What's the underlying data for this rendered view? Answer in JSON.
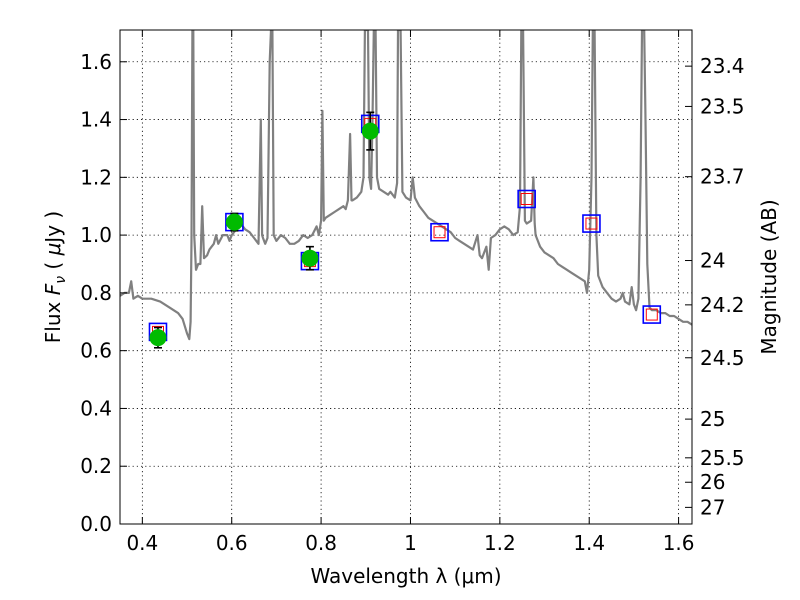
{
  "chart_data": {
    "type": "line",
    "xlabel": "Wavelength  λ (μm)",
    "ylabel": "Flux  F_ν  ( μJy )",
    "ylabel_parts": {
      "lead": "Flux  ",
      "sym": "F",
      "sub": "ν",
      "mid": "  ( ",
      "mu": "μ",
      "unit": "Jy )"
    },
    "y2label": "Magnitude (AB)",
    "xlim": [
      0.35,
      1.63
    ],
    "ylim": [
      0.0,
      1.71
    ],
    "grid": true,
    "x_ticks": [
      {
        "v": 0.4,
        "label": "0.4"
      },
      {
        "v": 0.6,
        "label": "0.6"
      },
      {
        "v": 0.8,
        "label": "0.8"
      },
      {
        "v": 1.0,
        "label": "1"
      },
      {
        "v": 1.2,
        "label": "1.2"
      },
      {
        "v": 1.4,
        "label": "1.4"
      },
      {
        "v": 1.6,
        "label": "1.6"
      }
    ],
    "y_ticks": [
      {
        "v": 0.0,
        "label": "0.0"
      },
      {
        "v": 0.2,
        "label": "0.2"
      },
      {
        "v": 0.4,
        "label": "0.4"
      },
      {
        "v": 0.6,
        "label": "0.6"
      },
      {
        "v": 0.8,
        "label": "0.8"
      },
      {
        "v": 1.0,
        "label": "1.0"
      },
      {
        "v": 1.2,
        "label": "1.2"
      },
      {
        "v": 1.4,
        "label": "1.4"
      },
      {
        "v": 1.6,
        "label": "1.6"
      }
    ],
    "magnitude_ticks": [
      {
        "mag": 23.4,
        "label": "23.4"
      },
      {
        "mag": 23.5,
        "label": "23.5"
      },
      {
        "mag": 23.7,
        "label": "23.7"
      },
      {
        "mag": 24,
        "label": "24"
      },
      {
        "mag": 24.2,
        "label": "24.2"
      },
      {
        "mag": 24.5,
        "label": "24.5"
      },
      {
        "mag": 25,
        "label": "25"
      },
      {
        "mag": 25.5,
        "label": "25.5"
      },
      {
        "mag": 26,
        "label": "26"
      },
      {
        "mag": 27,
        "label": "27"
      }
    ],
    "colors": {
      "spectrum": "#808080",
      "observed": "#00bb00",
      "errorbar": "#000000",
      "model_box": "#0000ff",
      "model_box_inner": "#ff0000",
      "grid": "#000000"
    },
    "series": [
      {
        "kind": "spectrum",
        "points": [
          [
            0.35,
            0.79
          ],
          [
            0.36,
            0.8
          ],
          [
            0.37,
            0.8
          ],
          [
            0.375,
            0.84
          ],
          [
            0.38,
            0.78
          ],
          [
            0.39,
            0.79
          ],
          [
            0.4,
            0.78
          ],
          [
            0.42,
            0.78
          ],
          [
            0.44,
            0.77
          ],
          [
            0.46,
            0.75
          ],
          [
            0.48,
            0.73
          ],
          [
            0.49,
            0.71
          ],
          [
            0.5,
            0.66
          ],
          [
            0.505,
            0.64
          ],
          [
            0.508,
            0.7
          ],
          [
            0.51,
            0.98
          ],
          [
            0.512,
            1.71
          ],
          [
            0.514,
            1.71
          ],
          [
            0.516,
            1.0
          ],
          [
            0.52,
            0.88
          ],
          [
            0.525,
            0.9
          ],
          [
            0.53,
            0.9
          ],
          [
            0.534,
            1.1
          ],
          [
            0.538,
            0.92
          ],
          [
            0.545,
            0.93
          ],
          [
            0.55,
            0.95
          ],
          [
            0.56,
            0.97
          ],
          [
            0.565,
            1.0
          ],
          [
            0.57,
            0.97
          ],
          [
            0.58,
            1.0
          ],
          [
            0.59,
            1.0
          ],
          [
            0.595,
            0.98
          ],
          [
            0.6,
            1.0
          ],
          [
            0.605,
            1.01
          ],
          [
            0.61,
            1.02
          ],
          [
            0.62,
            1.04
          ],
          [
            0.63,
            1.02
          ],
          [
            0.64,
            1.01
          ],
          [
            0.65,
            0.99
          ],
          [
            0.66,
            0.97
          ],
          [
            0.665,
            1.4
          ],
          [
            0.668,
            1.0
          ],
          [
            0.67,
            0.99
          ],
          [
            0.675,
            0.97
          ],
          [
            0.68,
            0.99
          ],
          [
            0.685,
            1.6
          ],
          [
            0.688,
            1.71
          ],
          [
            0.691,
            1.71
          ],
          [
            0.694,
            1.0
          ],
          [
            0.7,
            0.98
          ],
          [
            0.71,
            1.0
          ],
          [
            0.72,
            0.99
          ],
          [
            0.73,
            0.97
          ],
          [
            0.74,
            0.97
          ],
          [
            0.75,
            0.98
          ],
          [
            0.76,
            1.0
          ],
          [
            0.77,
            0.99
          ],
          [
            0.78,
            1.0
          ],
          [
            0.79,
            1.03
          ],
          [
            0.795,
            1.0
          ],
          [
            0.8,
            1.05
          ],
          [
            0.803,
            1.43
          ],
          [
            0.806,
            1.05
          ],
          [
            0.81,
            1.06
          ],
          [
            0.82,
            1.07
          ],
          [
            0.83,
            1.08
          ],
          [
            0.84,
            1.09
          ],
          [
            0.85,
            1.1
          ],
          [
            0.855,
            1.09
          ],
          [
            0.86,
            1.12
          ],
          [
            0.865,
            1.35
          ],
          [
            0.868,
            1.12
          ],
          [
            0.87,
            1.12
          ],
          [
            0.88,
            1.13
          ],
          [
            0.885,
            1.14
          ],
          [
            0.89,
            1.15
          ],
          [
            0.895,
            1.2
          ],
          [
            0.898,
            1.71
          ],
          [
            0.905,
            1.71
          ],
          [
            0.908,
            1.2
          ],
          [
            0.912,
            1.16
          ],
          [
            0.915,
            1.4
          ],
          [
            0.918,
            1.71
          ],
          [
            0.922,
            1.71
          ],
          [
            0.925,
            1.2
          ],
          [
            0.93,
            1.16
          ],
          [
            0.94,
            1.15
          ],
          [
            0.95,
            1.14
          ],
          [
            0.955,
            1.15
          ],
          [
            0.96,
            1.14
          ],
          [
            0.965,
            1.13
          ],
          [
            0.97,
            1.18
          ],
          [
            0.972,
            1.71
          ],
          [
            0.978,
            1.71
          ],
          [
            0.982,
            1.15
          ],
          [
            0.99,
            1.13
          ],
          [
            1.0,
            1.12
          ],
          [
            1.005,
            1.2
          ],
          [
            1.01,
            1.13
          ],
          [
            1.02,
            1.1
          ],
          [
            1.03,
            1.08
          ],
          [
            1.04,
            1.06
          ],
          [
            1.05,
            1.05
          ],
          [
            1.06,
            1.04
          ],
          [
            1.07,
            1.03
          ],
          [
            1.08,
            1.02
          ],
          [
            1.09,
            1.01
          ],
          [
            1.1,
            0.99
          ],
          [
            1.11,
            0.98
          ],
          [
            1.12,
            0.97
          ],
          [
            1.13,
            0.96
          ],
          [
            1.14,
            0.95
          ],
          [
            1.15,
            1.0
          ],
          [
            1.155,
            0.93
          ],
          [
            1.16,
            0.92
          ],
          [
            1.17,
            0.96
          ],
          [
            1.175,
            0.88
          ],
          [
            1.18,
            0.99
          ],
          [
            1.19,
            1.0
          ],
          [
            1.2,
            1.02
          ],
          [
            1.21,
            1.03
          ],
          [
            1.22,
            1.02
          ],
          [
            1.23,
            1.0
          ],
          [
            1.24,
            1.01
          ],
          [
            1.245,
            1.1
          ],
          [
            1.248,
            1.71
          ],
          [
            1.252,
            1.71
          ],
          [
            1.256,
            1.05
          ],
          [
            1.26,
            1.04
          ],
          [
            1.27,
            1.05
          ],
          [
            1.275,
            1.2
          ],
          [
            1.278,
            1.04
          ],
          [
            1.28,
            1.0
          ],
          [
            1.29,
            0.96
          ],
          [
            1.3,
            0.94
          ],
          [
            1.31,
            0.93
          ],
          [
            1.32,
            0.92
          ],
          [
            1.33,
            0.9
          ],
          [
            1.34,
            0.89
          ],
          [
            1.35,
            0.88
          ],
          [
            1.36,
            0.87
          ],
          [
            1.37,
            0.86
          ],
          [
            1.38,
            0.85
          ],
          [
            1.39,
            0.84
          ],
          [
            1.395,
            0.8
          ],
          [
            1.4,
            0.88
          ],
          [
            1.405,
            1.2
          ],
          [
            1.408,
            1.71
          ],
          [
            1.412,
            1.71
          ],
          [
            1.416,
            1.0
          ],
          [
            1.42,
            0.86
          ],
          [
            1.43,
            0.82
          ],
          [
            1.44,
            0.8
          ],
          [
            1.45,
            0.78
          ],
          [
            1.46,
            0.77
          ],
          [
            1.47,
            0.78
          ],
          [
            1.475,
            0.8
          ],
          [
            1.48,
            0.77
          ],
          [
            1.49,
            0.76
          ],
          [
            1.495,
            0.82
          ],
          [
            1.5,
            0.76
          ],
          [
            1.505,
            0.74
          ],
          [
            1.51,
            0.78
          ],
          [
            1.515,
            1.2
          ],
          [
            1.518,
            1.71
          ],
          [
            1.523,
            1.71
          ],
          [
            1.526,
            1.4
          ],
          [
            1.53,
            0.9
          ],
          [
            1.535,
            0.75
          ],
          [
            1.54,
            0.74
          ],
          [
            1.55,
            0.74
          ],
          [
            1.56,
            0.73
          ],
          [
            1.57,
            0.73
          ],
          [
            1.58,
            0.72
          ],
          [
            1.59,
            0.72
          ],
          [
            1.6,
            0.71
          ],
          [
            1.61,
            0.7
          ],
          [
            1.62,
            0.7
          ],
          [
            1.63,
            0.69
          ]
        ]
      },
      {
        "kind": "model_photometry",
        "points": [
          {
            "x": 0.435,
            "y": 0.665
          },
          {
            "x": 0.606,
            "y": 1.045
          },
          {
            "x": 0.775,
            "y": 0.91
          },
          {
            "x": 0.91,
            "y": 1.385
          },
          {
            "x": 1.065,
            "y": 1.01
          },
          {
            "x": 1.26,
            "y": 1.125
          },
          {
            "x": 1.405,
            "y": 1.04
          },
          {
            "x": 1.54,
            "y": 0.725
          }
        ]
      },
      {
        "kind": "observed_photometry",
        "points": [
          {
            "x": 0.435,
            "y": 0.645,
            "err": 0.035
          },
          {
            "x": 0.606,
            "y": 1.045,
            "err": 0.03
          },
          {
            "x": 0.775,
            "y": 0.92,
            "err": 0.04
          },
          {
            "x": 0.91,
            "y": 1.36,
            "err": 0.065
          }
        ]
      }
    ]
  }
}
